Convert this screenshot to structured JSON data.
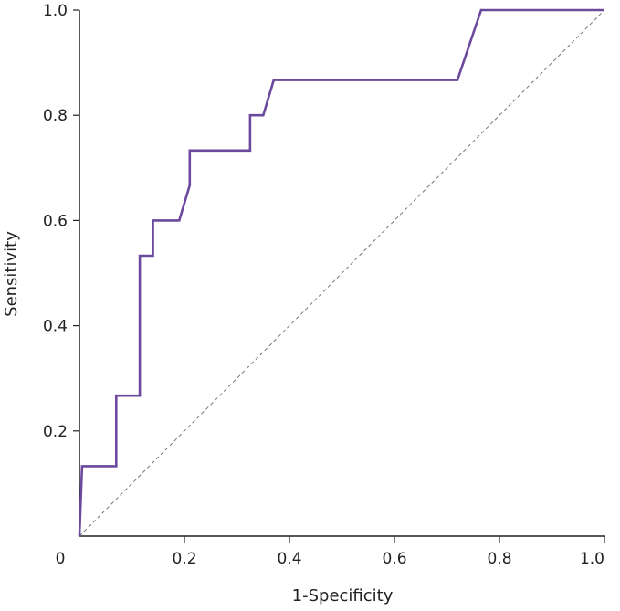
{
  "chart_data": {
    "type": "line",
    "title": "",
    "xlabel": "1-Specificity",
    "ylabel": "Sensitivity",
    "xlim": [
      0,
      1
    ],
    "ylim": [
      0,
      1
    ],
    "x_ticks": [
      0,
      0.2,
      0.4,
      0.6,
      0.8,
      1.0
    ],
    "x_tick_labels": [
      "0",
      "0.2",
      "0.4",
      "0.6",
      "0.8",
      "1.0"
    ],
    "y_ticks": [
      0.2,
      0.4,
      0.6,
      0.8,
      1.0
    ],
    "y_tick_labels": [
      "0.2",
      "0.4",
      "0.6",
      "0.8",
      "1.0"
    ],
    "grid": false,
    "legend": "none",
    "series": [
      {
        "name": "ROC curve",
        "color": "#6b4a9e",
        "style": "solid",
        "x": [
          0,
          0.005,
          0.07,
          0.07,
          0.115,
          0.115,
          0.14,
          0.14,
          0.19,
          0.21,
          0.21,
          0.325,
          0.325,
          0.35,
          0.37,
          0.37,
          0.72,
          0.765,
          1.0
        ],
        "y": [
          0,
          0.133,
          0.133,
          0.267,
          0.267,
          0.533,
          0.533,
          0.6,
          0.6,
          0.667,
          0.733,
          0.733,
          0.8,
          0.8,
          0.867,
          0.867,
          0.867,
          1.0,
          1.0
        ]
      },
      {
        "name": "Reference line",
        "color": "#777777",
        "style": "dashed",
        "x": [
          0,
          1
        ],
        "y": [
          0,
          1
        ]
      }
    ]
  }
}
